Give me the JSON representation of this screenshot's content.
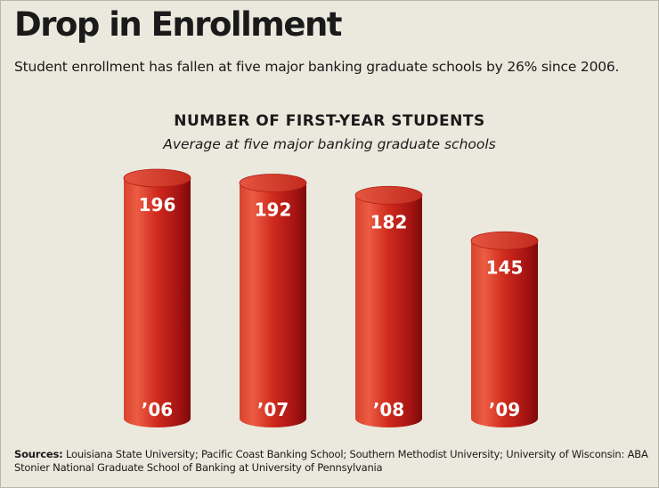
{
  "title": "Drop in Enrollment",
  "dek": "Student enrollment has fallen at five major banking graduate schools by 26% since 2006.",
  "chart_data": {
    "type": "bar",
    "title": "NUMBER OF FIRST-YEAR STUDENTS",
    "subtitle": "Average at five major banking graduate schools",
    "categories": [
      "’06",
      "’07",
      "’08",
      "’09"
    ],
    "values": [
      196,
      192,
      182,
      145
    ],
    "bar_style": "3D cylinder",
    "axes_visible": false,
    "grid": false,
    "data_labels": true
  },
  "colors": {
    "background": "#ebe9dd",
    "bar_light": "#e8553d",
    "bar_mid": "#c8201a",
    "bar_dark": "#8e0d0d",
    "label": "#ffffff"
  },
  "sources": {
    "label": "Sources:",
    "text": "Louisiana State University; Pacific Coast Banking School; Southern Methodist University; University of Wisconsin: ABA Stonier National Graduate School of Banking at University of Pennsylvania"
  }
}
